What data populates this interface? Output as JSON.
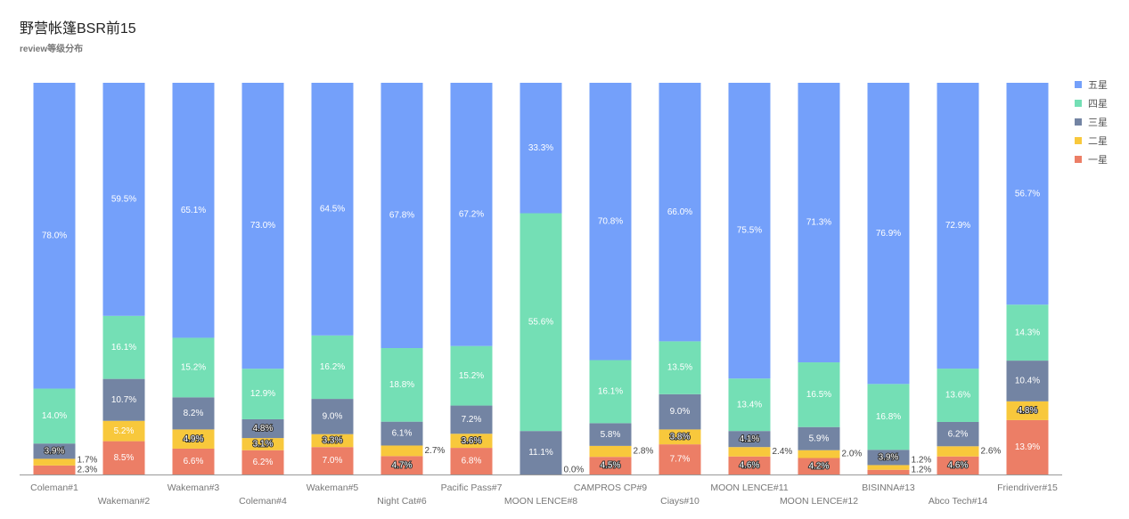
{
  "chart_data": {
    "type": "bar",
    "stacked": true,
    "title": "野营帐篷BSR前15",
    "subtitle": "review等级分布",
    "ylim": [
      0,
      100
    ],
    "unit": "%",
    "legend_position": "right",
    "grid": false,
    "categories": [
      "Coleman#1",
      "Wakeman#2",
      "Wakeman#3",
      "Coleman#4",
      "Wakeman#5",
      "Night Cat#6",
      "Pacific Pass#7",
      "MOON LENCE#8",
      "CAMPROS CP#9",
      "Ciays#10",
      "MOON LENCE#11",
      "MOON LENCE#12",
      "BISINNA#13",
      "Abco Tech#14",
      "Friendriver#15"
    ],
    "series": [
      {
        "name": "一星",
        "color": "#ec7e66",
        "values": [
          2.3,
          8.5,
          6.6,
          6.2,
          7.0,
          4.7,
          6.8,
          0.0,
          4.5,
          7.7,
          4.6,
          4.2,
          1.2,
          4.6,
          13.9
        ]
      },
      {
        "name": "二星",
        "color": "#f8c83c",
        "values": [
          1.7,
          5.2,
          4.9,
          3.1,
          3.3,
          2.7,
          3.6,
          0.0,
          2.8,
          3.8,
          2.4,
          2.0,
          1.2,
          2.6,
          4.8
        ]
      },
      {
        "name": "三星",
        "color": "#7384a3",
        "values": [
          3.9,
          10.7,
          8.2,
          4.8,
          9.0,
          6.1,
          7.2,
          11.1,
          5.8,
          9.0,
          4.1,
          5.9,
          3.9,
          6.2,
          10.4
        ]
      },
      {
        "name": "四星",
        "color": "#74dfb5",
        "values": [
          14.0,
          16.1,
          15.2,
          12.9,
          16.2,
          18.8,
          15.2,
          55.6,
          16.1,
          13.5,
          13.4,
          16.5,
          16.8,
          13.6,
          14.3
        ]
      },
      {
        "name": "五星",
        "color": "#74a0fa",
        "values": [
          78.0,
          59.5,
          65.1,
          73.0,
          64.5,
          67.8,
          67.2,
          33.3,
          70.8,
          66.0,
          75.5,
          71.3,
          76.9,
          72.9,
          56.7
        ]
      }
    ],
    "legend_order": [
      "五星",
      "四星",
      "三星",
      "二星",
      "一星"
    ]
  }
}
